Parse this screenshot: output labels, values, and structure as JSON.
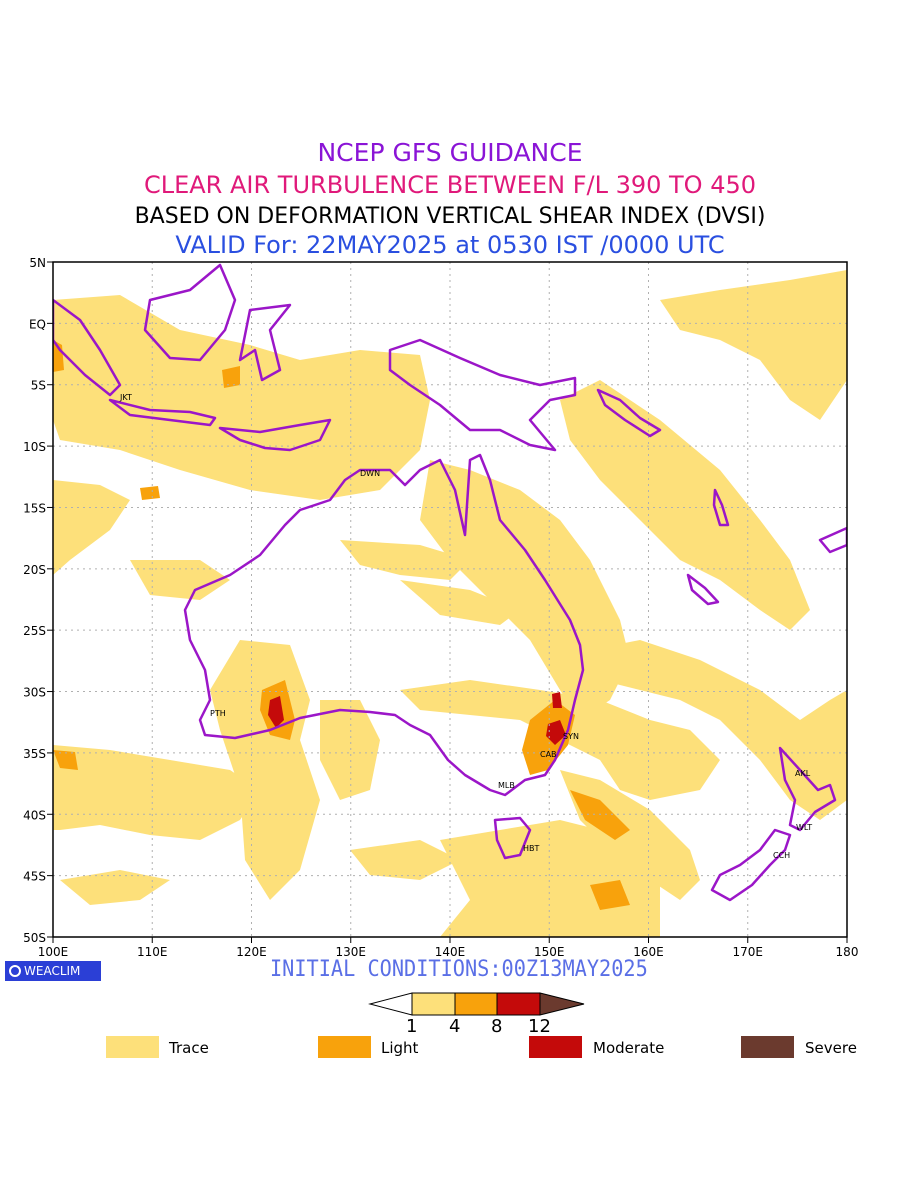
{
  "titles": {
    "line1": "NCEP GFS GUIDANCE",
    "line2": "CLEAR AIR TURBULENCE BETWEEN F/L 390 TO 450",
    "line3": "BASED ON DEFORMATION VERTICAL SHEAR INDEX (DVSI)",
    "line4": "VALID For: 22MAY2025 at 0530 IST /0000 UTC"
  },
  "map": {
    "lat_labels": [
      "5N",
      "EQ",
      "5S",
      "10S",
      "15S",
      "20S",
      "25S",
      "30S",
      "35S",
      "40S",
      "45S",
      "50S"
    ],
    "lon_labels": [
      "100E",
      "110E",
      "120E",
      "130E",
      "140E",
      "150E",
      "160E",
      "170E",
      "180"
    ],
    "stations": [
      {
        "code": "JKT"
      },
      {
        "code": "DWN"
      },
      {
        "code": "PTH"
      },
      {
        "code": "SYN"
      },
      {
        "code": "CAB"
      },
      {
        "code": "MLB"
      },
      {
        "code": "HBT"
      },
      {
        "code": "AKL"
      },
      {
        "code": "WLT"
      },
      {
        "code": "CCH"
      }
    ],
    "colors": {
      "coast": "#9b16c8",
      "trace": "#fde07a",
      "light": "#f8a20c",
      "moderate": "#c40a0a",
      "severe": "#6b3a2e",
      "grid": "#b0b0b0"
    }
  },
  "footer": {
    "logo": "WEACLIM",
    "initial_conditions": "INITIAL CONDITIONS:00Z13MAY2025"
  },
  "colorbar": {
    "ticks": [
      "1",
      "4",
      "8",
      "12"
    ]
  },
  "legend": [
    {
      "label": "Trace",
      "color": "#fde07a"
    },
    {
      "label": "Light",
      "color": "#f8a20c"
    },
    {
      "label": "Moderate",
      "color": "#c40a0a"
    },
    {
      "label": "Severe",
      "color": "#6b3a2e"
    }
  ]
}
